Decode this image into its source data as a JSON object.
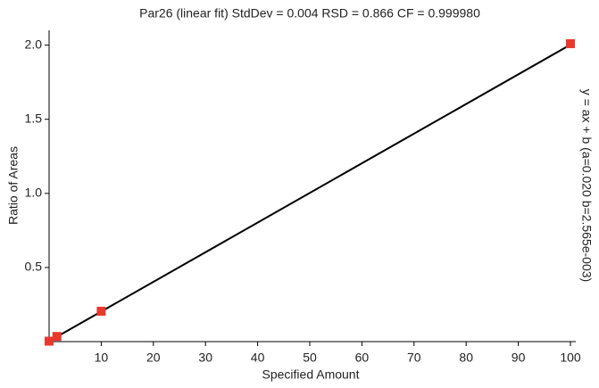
{
  "chart_data": {
    "type": "scatter",
    "title": "Par26 (linear fit) StdDev = 0.004 RSD = 0.866 CF = 0.999980",
    "x_label": "Specified Amount",
    "y_label": "Ratio of Areas",
    "annotation": "y = ax + b  (a=0.020 b=2.565e-003)",
    "xlim": [
      0,
      100
    ],
    "ylim": [
      0,
      2.1
    ],
    "xticks": [
      10,
      20,
      30,
      40,
      50,
      60,
      70,
      80,
      90,
      100
    ],
    "yticks": [
      0.5,
      {
        "value": 1,
        "label": "1.0"
      },
      1.5,
      {
        "value": 2,
        "label": "2.0"
      }
    ],
    "series": [
      {
        "color": "#e8392f",
        "x": [
          0,
          1.5,
          10,
          100
        ],
        "values": [
          0.003,
          0.035,
          0.205,
          2.01
        ]
      }
    ],
    "fit_line": {
      "color": "#000000",
      "x": [
        0,
        100
      ],
      "values": [
        0.003,
        2.003
      ]
    }
  }
}
